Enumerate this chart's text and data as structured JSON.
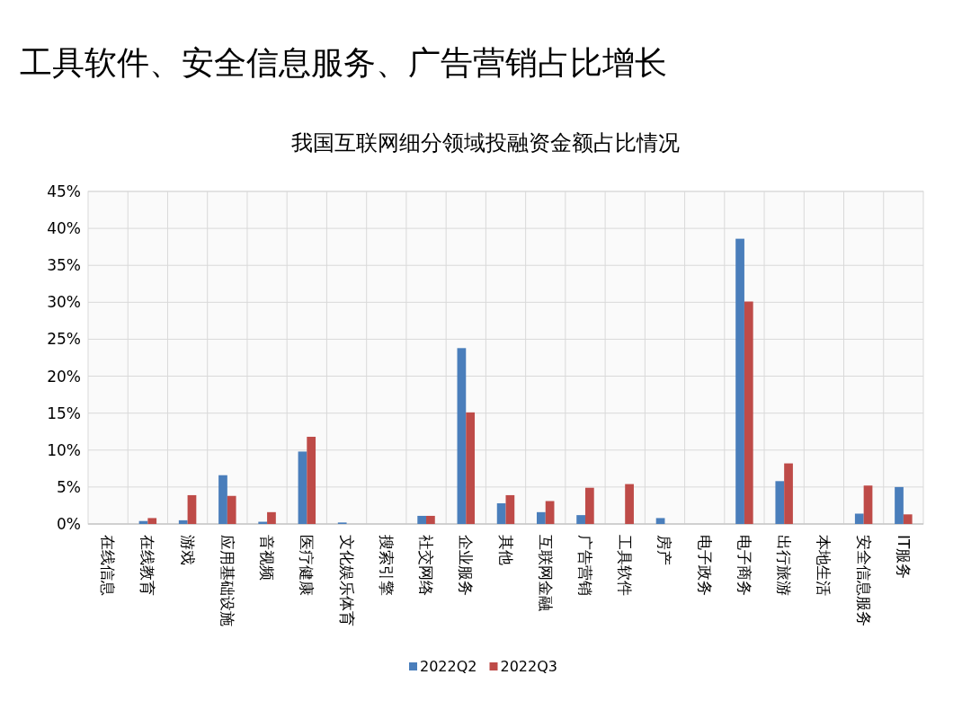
{
  "chart_data": {
    "type": "bar",
    "title": "工具软件、安全信息服务、广告营销占比增长",
    "subtitle": "我国互联网细分领域投融资金额占比情况",
    "categories": [
      "在线信息",
      "在线教育",
      "游戏",
      "应用基础设施",
      "音视频",
      "医疗健康",
      "文化娱乐体育",
      "搜索引擎",
      "社交网络",
      "企业服务",
      "其他",
      "互联网金融",
      "广告营销",
      "工具软件",
      "房产",
      "电子政务",
      "电子商务",
      "出行旅游",
      "本地生活",
      "安全信息服务",
      "IT服务"
    ],
    "series": [
      {
        "name": "2022Q2",
        "color": "#4a7ebb",
        "values": [
          0,
          0.4,
          0.5,
          6.6,
          0.3,
          9.8,
          0.2,
          0,
          1.1,
          23.8,
          2.8,
          1.6,
          1.2,
          0,
          0.8,
          0,
          38.6,
          5.8,
          0,
          1.4,
          5.0
        ]
      },
      {
        "name": "2022Q3",
        "color": "#be4b48",
        "values": [
          0,
          0.8,
          3.9,
          3.8,
          1.6,
          11.8,
          0,
          0,
          1.1,
          15.1,
          3.9,
          3.1,
          4.9,
          5.4,
          0,
          0,
          30.1,
          8.2,
          0,
          5.2,
          1.3
        ]
      }
    ],
    "ylim": [
      0,
      45
    ],
    "yticks": [
      {
        "value": 0,
        "label": "0%"
      },
      {
        "value": 5,
        "label": "5%"
      },
      {
        "value": 10,
        "label": "10%"
      },
      {
        "value": 15,
        "label": "15%"
      },
      {
        "value": 20,
        "label": "20%"
      },
      {
        "value": 25,
        "label": "25%"
      },
      {
        "value": 30,
        "label": "30%"
      },
      {
        "value": 35,
        "label": "35%"
      },
      {
        "value": 40,
        "label": "40%"
      },
      {
        "value": 45,
        "label": "45%"
      }
    ],
    "grid": true,
    "legend": "bottom"
  }
}
